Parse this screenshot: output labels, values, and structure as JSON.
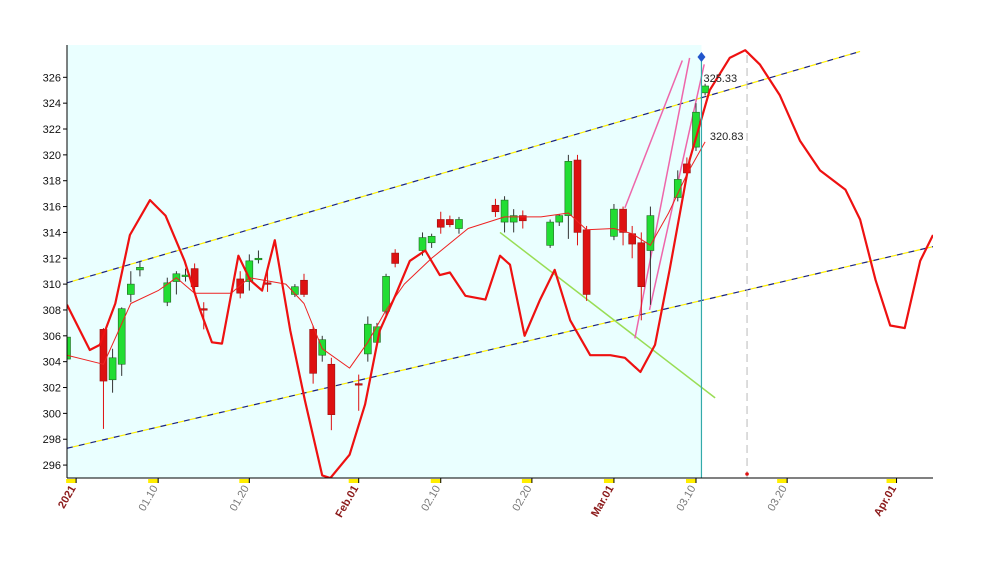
{
  "chart_data": {
    "type": "candlestick",
    "ylim": [
      295,
      328.5
    ],
    "yticks": [
      296,
      298,
      300,
      302,
      304,
      306,
      308,
      310,
      312,
      314,
      316,
      318,
      320,
      322,
      324,
      326
    ],
    "xlim": [
      0,
      95
    ],
    "xticks": [
      {
        "value": 1,
        "label": "2021"
      },
      {
        "value": 10,
        "label": "01.10"
      },
      {
        "value": 20,
        "label": "01.20"
      },
      {
        "value": 32,
        "label": "Feb.01"
      },
      {
        "value": 41,
        "label": "02.10"
      },
      {
        "value": 51,
        "label": "02.20"
      },
      {
        "value": 60,
        "label": "Mar.01"
      },
      {
        "value": 69,
        "label": "03.10"
      },
      {
        "value": 79,
        "label": "03.20"
      },
      {
        "value": 91,
        "label": "Apr.01"
      }
    ],
    "major_tick_color": "#8b1a1a",
    "minor_tick_color": "#777777",
    "background": "#eaffff",
    "up_color": "#22dd33",
    "down_color": "#dd1111",
    "candles": {
      "x": [
        0,
        4,
        5,
        6,
        7,
        8,
        11,
        12,
        13,
        14,
        15,
        19,
        20,
        21,
        22,
        25,
        26,
        27,
        28,
        29,
        32,
        33,
        34,
        35,
        36,
        39,
        40,
        41,
        42,
        43,
        47,
        48,
        49,
        50,
        53,
        54,
        55,
        56,
        57,
        60,
        61,
        62,
        63,
        64,
        67,
        68,
        69,
        70
      ],
      "open": [
        304.2,
        306.5,
        302.6,
        303.8,
        309.2,
        311.1,
        308.6,
        310.2,
        310.6,
        311.2,
        308.1,
        310.4,
        310.2,
        311.9,
        310.1,
        309.2,
        310.3,
        306.5,
        304.5,
        303.8,
        302.3,
        304.6,
        305.5,
        307.9,
        312.4,
        312.6,
        313.2,
        315.0,
        315.0,
        314.3,
        316.1,
        314.8,
        314.8,
        315.3,
        313.0,
        314.8,
        315.3,
        319.6,
        314.2,
        313.7,
        315.8,
        313.9,
        313.2,
        312.6,
        316.7,
        319.3,
        320.6,
        324.8
      ],
      "high": [
        306.5,
        306.6,
        305.0,
        308.2,
        311.0,
        311.8,
        310.5,
        311.0,
        311.2,
        311.6,
        308.6,
        311.0,
        312.3,
        312.6,
        311.0,
        310.0,
        310.8,
        306.8,
        306.0,
        304.3,
        303.0,
        307.5,
        307.0,
        310.8,
        312.7,
        314.0,
        313.9,
        315.6,
        315.3,
        315.2,
        316.6,
        316.8,
        315.8,
        315.7,
        315.0,
        315.4,
        320.0,
        320.0,
        314.5,
        316.2,
        316.0,
        314.5,
        314.0,
        316.0,
        318.8,
        319.8,
        324.0,
        325.5
      ],
      "low": [
        303.0,
        298.8,
        301.6,
        302.9,
        308.6,
        310.6,
        308.3,
        309.2,
        310.2,
        309.3,
        306.5,
        308.9,
        309.5,
        311.6,
        309.4,
        309.0,
        309.0,
        302.3,
        304.0,
        298.7,
        300.2,
        304.0,
        305.2,
        307.6,
        311.3,
        312.2,
        312.8,
        313.9,
        314.4,
        313.9,
        315.2,
        314.0,
        314.0,
        314.3,
        312.8,
        314.5,
        313.5,
        313.0,
        308.7,
        313.4,
        313.0,
        312.0,
        307.2,
        308.4,
        316.4,
        318.2,
        320.3,
        324.6
      ],
      "close": [
        305.9,
        302.5,
        304.3,
        308.1,
        310.0,
        311.3,
        310.1,
        310.8,
        310.7,
        309.8,
        308.0,
        309.3,
        311.8,
        312.0,
        310.0,
        309.8,
        309.2,
        303.1,
        305.7,
        299.9,
        302.2,
        306.9,
        306.7,
        310.6,
        311.6,
        313.6,
        313.7,
        314.4,
        314.6,
        315.0,
        315.6,
        316.5,
        315.3,
        314.9,
        314.8,
        315.3,
        319.5,
        314.0,
        309.2,
        315.8,
        314.0,
        313.1,
        309.8,
        315.3,
        318.1,
        318.6,
        323.3,
        325.33
      ]
    },
    "lines": [
      {
        "color": "#ee2222",
        "width": 1,
        "x": [
          0,
          4,
          7,
          10,
          12,
          14,
          18,
          20,
          24,
          26,
          28,
          31,
          33,
          35,
          37,
          40,
          44,
          48,
          52,
          55,
          57,
          60,
          62,
          64,
          66,
          68,
          70
        ],
        "values": [
          304.5,
          303.8,
          308.5,
          309.5,
          310.5,
          309.3,
          309.3,
          310.5,
          310,
          308.5,
          305,
          303.5,
          305.5,
          308,
          310,
          312,
          314.3,
          315.2,
          315.2,
          315.5,
          314.2,
          314.3,
          313.9,
          313,
          315.5,
          318.5,
          321
        ]
      },
      {
        "color": "#ee1111",
        "width": 2.2,
        "x": [
          0,
          2.5,
          3.6,
          5.3,
          6.9,
          9.1,
          10.8,
          12.9,
          14.6,
          15.9,
          17,
          18.8,
          20.1,
          21.4,
          22.8,
          24.5,
          26.1,
          28,
          28.9,
          31,
          32.7,
          34.3,
          36,
          37.6,
          39.3,
          40.9,
          42,
          43.7,
          45.9,
          47.5,
          48.6,
          50.2,
          51.9,
          53.5,
          55.2,
          57.4,
          59.6,
          61.2,
          62.9,
          64.5,
          66.1,
          68.3,
          70.5,
          72.7,
          74.4,
          76,
          78.2,
          80.4,
          82.6,
          85.4,
          87,
          88.7,
          90.3,
          91.9,
          93.6,
          95
        ],
        "values": [
          308.4,
          304.9,
          305.3,
          308.5,
          313.8,
          316.5,
          315.3,
          311.8,
          308,
          305.5,
          305.4,
          312.2,
          310.3,
          309.5,
          313.4,
          306.4,
          301,
          295.2,
          295,
          296.8,
          300.7,
          306.4,
          309.1,
          311.8,
          312.6,
          310.7,
          310.9,
          309.1,
          308.8,
          312.2,
          311.5,
          306,
          308.8,
          311.1,
          307.2,
          304.5,
          304.5,
          304.3,
          303.2,
          305.3,
          311.1,
          319.6,
          325,
          327.5,
          328.1,
          327,
          324.6,
          321.1,
          318.8,
          317.3,
          315,
          310.3,
          306.8,
          306.6,
          311.8,
          313.8
        ]
      }
    ],
    "trendlines": [
      {
        "x": [
          0,
          87
        ],
        "y": [
          310.1,
          328.0
        ],
        "color": "#1a237e",
        "style": "channel"
      },
      {
        "x": [
          0,
          95
        ],
        "y": [
          297.3,
          312.9
        ],
        "color": "#1a237e",
        "style": "channel"
      },
      {
        "x": [
          47.5,
          71.1
        ],
        "y": [
          314.0,
          301.2
        ],
        "color": "#99dd55",
        "style": "solid"
      },
      {
        "x": [
          62.3,
          68.3
        ],
        "y": [
          305.8,
          327.5
        ],
        "color": "#ee66aa",
        "style": "solid"
      },
      {
        "x": [
          61.2,
          67.5
        ],
        "y": [
          315.9,
          327.3
        ],
        "color": "#ee66aa",
        "style": "solid"
      },
      {
        "x": [
          63.9,
          69.9
        ],
        "y": [
          308.0,
          327.0
        ],
        "color": "#ee66aa",
        "style": "solid"
      }
    ],
    "cursor_x": 69.6,
    "cursor_color": "#33aaaa",
    "projection_x": 74.6,
    "labels": [
      {
        "x": 69.6,
        "value": 325.33,
        "label": "325.33"
      },
      {
        "x": 70.3,
        "value": 320.83,
        "label": "320.83"
      }
    ]
  }
}
